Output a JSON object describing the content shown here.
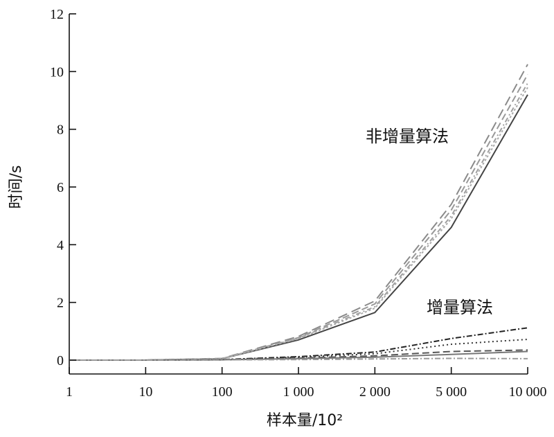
{
  "chart_data": {
    "type": "line",
    "xlabel": "样本量/10²",
    "ylabel": "时间/s",
    "categories": [
      "1",
      "10",
      "100",
      "1 000",
      "2 000",
      "5 000",
      "10 000"
    ],
    "y_ticks": [
      "0",
      "2",
      "4",
      "6",
      "8",
      "10",
      "12"
    ],
    "ylim": [
      0,
      12
    ],
    "grid": false,
    "annotations": [
      {
        "text": "非增量算法"
      },
      {
        "text": "增量算法"
      }
    ],
    "series": [
      {
        "group": "non-incremental",
        "color": "#444444",
        "dash": "none",
        "values": [
          0,
          0,
          0.05,
          0.7,
          1.65,
          4.6,
          9.2
        ]
      },
      {
        "group": "non-incremental",
        "color": "#8a8a8a",
        "dash": "14 7",
        "values": [
          0,
          0,
          0.06,
          0.82,
          2.05,
          5.4,
          10.25
        ]
      },
      {
        "group": "non-incremental",
        "color": "#999999",
        "dash": "10 5",
        "values": [
          0,
          0,
          0.05,
          0.78,
          1.95,
          5.2,
          9.9
        ]
      },
      {
        "group": "non-incremental",
        "color": "#a0a0a0",
        "dash": "7 4 2 4",
        "values": [
          0,
          0,
          0.05,
          0.76,
          1.85,
          5.0,
          9.6
        ]
      },
      {
        "group": "non-incremental",
        "color": "#aaaaaa",
        "dash": "3 3",
        "values": [
          0,
          0,
          0.05,
          0.74,
          1.8,
          4.9,
          9.45
        ]
      },
      {
        "group": "incremental",
        "color": "#222222",
        "dash": "8 3 2 3",
        "values": [
          0,
          0,
          0.02,
          0.12,
          0.28,
          0.75,
          1.12
        ]
      },
      {
        "group": "incremental",
        "color": "#333333",
        "dash": "2 4",
        "values": [
          0,
          0,
          0.02,
          0.1,
          0.22,
          0.55,
          0.72
        ]
      },
      {
        "group": "incremental",
        "color": "#555555",
        "dash": "10 5",
        "values": [
          0,
          0,
          0.01,
          0.07,
          0.15,
          0.3,
          0.35
        ]
      },
      {
        "group": "incremental",
        "color": "#777777",
        "dash": "none",
        "values": [
          0,
          0,
          0.01,
          0.05,
          0.1,
          0.2,
          0.3
        ]
      },
      {
        "group": "incremental",
        "color": "#999999",
        "dash": "8 3 2 3",
        "values": [
          0,
          0,
          0.01,
          0.02,
          0.04,
          0.06,
          0.05
        ]
      }
    ]
  }
}
